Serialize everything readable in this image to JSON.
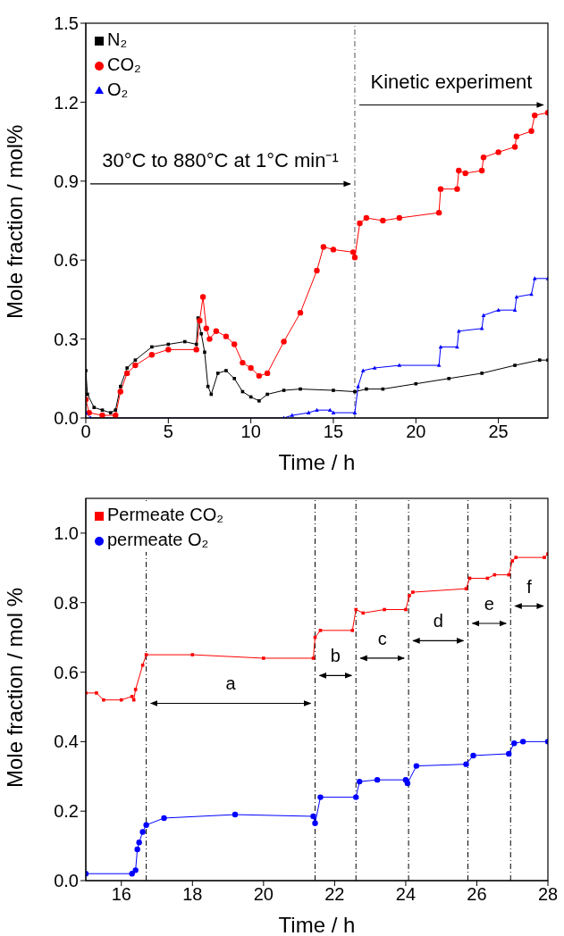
{
  "chart_data": [
    {
      "type": "line",
      "xlabel": "Time / h",
      "ylabel": "Mole fraction / mol%",
      "xlim": [
        0,
        28
      ],
      "xticks": [
        0,
        5,
        10,
        15,
        20,
        25
      ],
      "ylim": [
        0,
        1.5
      ],
      "yticks": [
        {
          "value": 0,
          "label": "0.0"
        },
        {
          "value": 0.3,
          "label": "0.3"
        },
        {
          "value": 0.6,
          "label": "0.6"
        },
        {
          "value": 0.9,
          "label": "0.9"
        },
        {
          "value": 1.2,
          "label": "1.2"
        },
        {
          "value": 1.5,
          "label": "1.5"
        }
      ],
      "legend": "top left",
      "line_style": "solid",
      "series": [
        {
          "name": "N₂",
          "color": "#000000",
          "marker": "square",
          "x": [
            0,
            0.1,
            0.5,
            1,
            1.5,
            1.8,
            2.1,
            2.5,
            3,
            4,
            5,
            6,
            6.7,
            6.8,
            7,
            7.2,
            7.4,
            7.6,
            8,
            8.5,
            9,
            9.5,
            10,
            10.5,
            11,
            12,
            13,
            15,
            16.3,
            17,
            18,
            20,
            22,
            24,
            26,
            27.5,
            28
          ],
          "values": [
            0.18,
            0.09,
            0.04,
            0.03,
            0.02,
            0.03,
            0.12,
            0.19,
            0.22,
            0.27,
            0.28,
            0.29,
            0.28,
            0.38,
            0.32,
            0.25,
            0.12,
            0.09,
            0.17,
            0.18,
            0.15,
            0.1,
            0.08,
            0.065,
            0.09,
            0.105,
            0.11,
            0.105,
            0.1,
            0.11,
            0.11,
            0.13,
            0.15,
            0.17,
            0.2,
            0.22,
            0.22
          ]
        },
        {
          "name": "CO₂",
          "color": "#ff0000",
          "marker": "circle",
          "x": [
            0,
            0.2,
            1,
            1.8,
            2.1,
            2.5,
            3,
            4,
            5,
            6.7,
            6.9,
            7.1,
            7.3,
            7.5,
            7.9,
            8.5,
            9,
            9.5,
            10,
            10.5,
            11,
            12,
            13,
            14,
            14.4,
            15,
            16.2,
            16.3,
            16.6,
            17,
            18,
            19,
            21.4,
            21.5,
            22.5,
            22.6,
            23,
            24,
            24.1,
            25,
            26,
            26.1,
            27,
            27.2,
            28
          ],
          "values": [
            0.07,
            0.02,
            0.01,
            0.01,
            0.1,
            0.17,
            0.2,
            0.24,
            0.26,
            0.26,
            0.37,
            0.46,
            0.34,
            0.3,
            0.33,
            0.31,
            0.28,
            0.21,
            0.19,
            0.16,
            0.17,
            0.29,
            0.4,
            0.56,
            0.65,
            0.64,
            0.63,
            0.61,
            0.74,
            0.76,
            0.75,
            0.76,
            0.78,
            0.87,
            0.87,
            0.94,
            0.93,
            0.94,
            0.99,
            1.01,
            1.03,
            1.07,
            1.09,
            1.15,
            1.16
          ]
        },
        {
          "name": "O₂",
          "color": "#0000ff",
          "marker": "triangle",
          "x": [
            0,
            0.3,
            12,
            12.5,
            13.5,
            14,
            14.8,
            15,
            16.3,
            16.5,
            16.8,
            17.5,
            19,
            21.4,
            21.5,
            22.5,
            22.6,
            24,
            24.1,
            25,
            26,
            26.1,
            27,
            27.2,
            28
          ],
          "values": [
            0.02,
            0,
            0,
            0.01,
            0.02,
            0.03,
            0.03,
            0.02,
            0.02,
            0.12,
            0.18,
            0.19,
            0.2,
            0.2,
            0.27,
            0.27,
            0.33,
            0.34,
            0.39,
            0.41,
            0.41,
            0.46,
            0.47,
            0.53,
            0.53
          ]
        }
      ],
      "ref_lines": [
        {
          "axis": "x",
          "value": 16.3,
          "color": "#555555",
          "line_style": "dashed"
        }
      ],
      "annotations": [
        "30°C to 880°C at 1°C min⁻¹",
        "Kinetic experiment"
      ]
    },
    {
      "type": "line",
      "xlabel": "Time / h",
      "ylabel": "Mole fraction / mol %",
      "xlim": [
        15,
        28
      ],
      "xticks": [
        16,
        18,
        20,
        22,
        24,
        26,
        28
      ],
      "ylim": [
        0,
        1.1
      ],
      "yticks": [
        {
          "value": 0,
          "label": "0.0"
        },
        {
          "value": 0.2,
          "label": "0.2"
        },
        {
          "value": 0.4,
          "label": "0.4"
        },
        {
          "value": 0.6,
          "label": "0.6"
        },
        {
          "value": 0.8,
          "label": "0.8"
        },
        {
          "value": 1.0,
          "label": "1.0"
        }
      ],
      "legend": "top left",
      "line_style": "solid",
      "series": [
        {
          "name": "Permeate CO₂",
          "color": "#ff0000",
          "marker": "square",
          "x": [
            15,
            15.3,
            15.5,
            16,
            16.3,
            16.35,
            16.4,
            16.6,
            16.7,
            18,
            20,
            21.4,
            21.45,
            21.6,
            22.5,
            22.6,
            22.8,
            23.4,
            24,
            24.1,
            24.2,
            25.7,
            25.8,
            26.3,
            26.5,
            26.9,
            27,
            27.1,
            27.9,
            28
          ],
          "values": [
            0.54,
            0.54,
            0.52,
            0.52,
            0.53,
            0.52,
            0.55,
            0.62,
            0.65,
            0.65,
            0.64,
            0.64,
            0.7,
            0.72,
            0.72,
            0.78,
            0.77,
            0.78,
            0.78,
            0.82,
            0.83,
            0.84,
            0.87,
            0.87,
            0.88,
            0.88,
            0.92,
            0.93,
            0.93,
            0.94
          ]
        },
        {
          "name": "permeate O₂",
          "color": "#0000ff",
          "marker": "circle",
          "x": [
            15,
            16.3,
            16.4,
            16.45,
            16.5,
            16.6,
            16.7,
            17.2,
            19.2,
            21.4,
            21.45,
            21.6,
            22.6,
            22.7,
            23.2,
            24,
            24.05,
            24.3,
            25.7,
            25.9,
            26.9,
            27.05,
            27.3,
            28
          ],
          "values": [
            0.02,
            0.02,
            0.03,
            0.09,
            0.11,
            0.14,
            0.16,
            0.18,
            0.19,
            0.185,
            0.165,
            0.24,
            0.24,
            0.285,
            0.29,
            0.29,
            0.28,
            0.33,
            0.335,
            0.36,
            0.365,
            0.395,
            0.4,
            0.4
          ]
        }
      ],
      "ref_lines": [
        {
          "axis": "x",
          "value": 16.7,
          "color": "#000000",
          "line_style": "dashed"
        },
        {
          "axis": "x",
          "value": 21.45,
          "color": "#000000",
          "line_style": "dashed"
        },
        {
          "axis": "x",
          "value": 22.6,
          "color": "#000000",
          "line_style": "dashed"
        },
        {
          "axis": "x",
          "value": 24.08,
          "color": "#000000",
          "line_style": "dashed"
        },
        {
          "axis": "x",
          "value": 25.75,
          "color": "#000000",
          "line_style": "dashed"
        },
        {
          "axis": "x",
          "value": 26.95,
          "color": "#000000",
          "line_style": "dashed"
        }
      ],
      "annotations": [
        "a",
        "b",
        "c",
        "d",
        "e",
        "f"
      ]
    }
  ]
}
